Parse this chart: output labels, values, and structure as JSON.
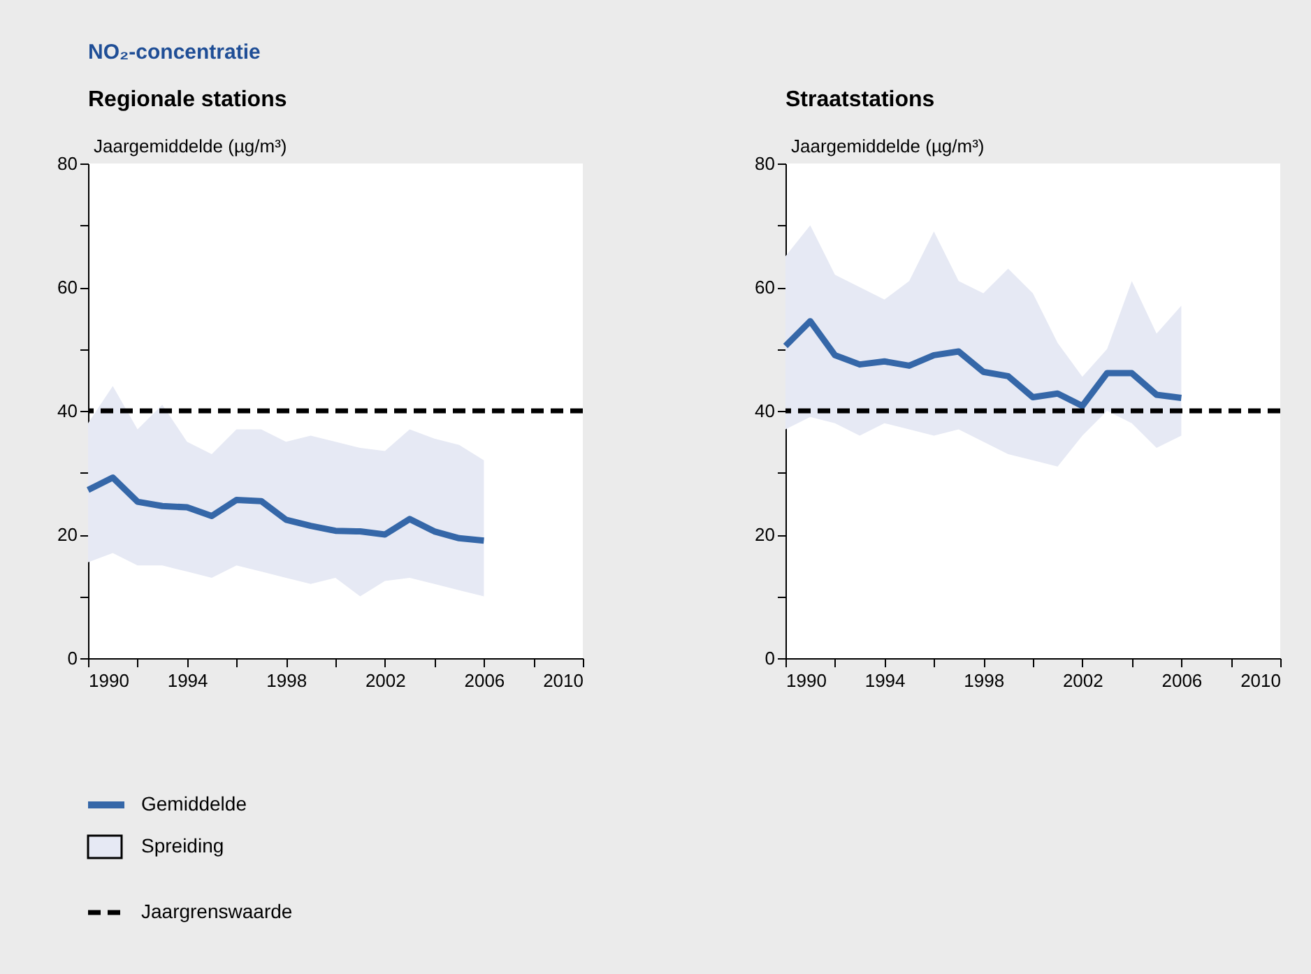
{
  "chart_data": [
    {
      "type": "line",
      "title": "NO₂-concentratie",
      "subtitle": "Regionale stations",
      "ylabel": "Jaargemiddelde (µg/m³)",
      "legend": "bottom",
      "annotations": [
        "Spreiding"
      ],
      "x": [
        1990,
        1991,
        1992,
        1993,
        1994,
        1995,
        1996,
        1997,
        1998,
        1999,
        2000,
        2001,
        2002,
        2003,
        2004,
        2005,
        2006
      ],
      "series": [
        {
          "name": "Gemiddelde",
          "color": "#3567a8",
          "values": [
            27.2,
            29.2,
            25.3,
            24.6,
            24.4,
            23.0,
            25.6,
            25.4,
            22.4,
            21.4,
            20.6,
            20.5,
            20.0,
            22.5,
            20.5,
            19.4,
            19.0
          ],
          "lower": [
            15.5,
            17,
            15,
            15,
            14,
            13,
            15,
            14,
            13,
            12,
            13,
            10,
            12.5,
            13,
            12,
            11,
            10
          ],
          "upper": [
            38,
            44,
            37,
            41,
            35,
            33,
            37,
            37,
            35,
            36,
            35,
            34,
            33.5,
            37,
            35.5,
            34.5,
            32
          ]
        }
      ],
      "ref_lines": [
        {
          "axis": "y",
          "value": 40,
          "label": "Jaargrenswaarde",
          "color": "#000000",
          "line_style": "dashed"
        }
      ],
      "xlim": [
        1990,
        2010
      ],
      "xticks": [
        1990,
        {
          "value": 1992,
          "label": null
        },
        1994,
        {
          "value": 1996,
          "label": null
        },
        1998,
        {
          "value": 2000,
          "label": null
        },
        2002,
        {
          "value": 2004,
          "label": null
        },
        2006,
        {
          "value": 2008,
          "label": null
        },
        2010
      ],
      "ylim": [
        0,
        80
      ],
      "yticks": [
        0,
        {
          "value": 10,
          "label": null
        },
        20,
        {
          "value": 30,
          "label": null
        },
        40,
        {
          "value": 50,
          "label": null
        },
        60,
        {
          "value": 70,
          "label": null
        },
        80
      ],
      "grid": false
    },
    {
      "type": "line",
      "title": "Straatstations",
      "ylabel": "Jaargemiddelde (µg/m³)",
      "x": [
        1990,
        1991,
        1992,
        1993,
        1994,
        1995,
        1996,
        1997,
        1998,
        1999,
        2000,
        2001,
        2002,
        2003,
        2004,
        2005,
        2006
      ],
      "series": [
        {
          "color": "#3567a8",
          "values": [
            50.5,
            54.5,
            49,
            47.5,
            48,
            47.3,
            49,
            49.6,
            46.3,
            45.6,
            42.2,
            42.8,
            40.8,
            46.1,
            46.1,
            42.6,
            42.1
          ],
          "lower": [
            37,
            39,
            38,
            36,
            38,
            37,
            36,
            37,
            35,
            33,
            32,
            31,
            36,
            40,
            38,
            34,
            36
          ],
          "upper": [
            65,
            70,
            62,
            60,
            58,
            61,
            69,
            61,
            59,
            63,
            59,
            51,
            45.5,
            50,
            61,
            52.5,
            57
          ]
        }
      ],
      "ref_lines": [
        {
          "axis": "y",
          "value": 40,
          "color": "#000000",
          "line_style": "dashed"
        }
      ],
      "xlim": [
        1990,
        2010
      ],
      "xticks": [
        1990,
        {
          "value": 1992,
          "label": null
        },
        1994,
        {
          "value": 1996,
          "label": null
        },
        1998,
        {
          "value": 2000,
          "label": null
        },
        2002,
        {
          "value": 2004,
          "label": null
        },
        2006,
        {
          "value": 2008,
          "label": null
        },
        2010
      ],
      "ylim": [
        0,
        80
      ],
      "yticks": [
        0,
        {
          "value": 10,
          "label": null
        },
        20,
        {
          "value": 30,
          "label": null
        },
        40,
        {
          "value": 50,
          "label": null
        },
        60,
        {
          "value": 70,
          "label": null
        },
        80
      ],
      "grid": false
    }
  ]
}
